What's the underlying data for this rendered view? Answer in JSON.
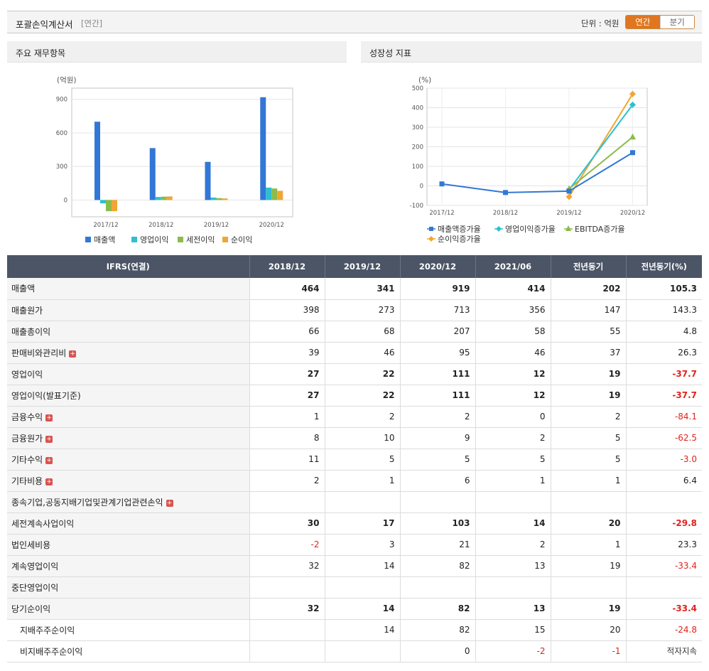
{
  "header": {
    "title": "포괄손익계산서",
    "subtitle": "[연간]",
    "unit_label": "단위 : 억원",
    "toggle_annual": "연간",
    "toggle_quarter": "분기"
  },
  "panels": {
    "left_title": "주요 재무항목",
    "right_title": "성장성 지표"
  },
  "colors": {
    "revenue": "#3277d6",
    "op_income": "#2fbfcf",
    "pretax": "#8bbb4a",
    "net": "#f0a635",
    "table_header": "#4b5566",
    "negative": "#e0231d",
    "accent": "#e0761f"
  },
  "chart_data": [
    {
      "type": "bar",
      "ylabel": "(억원)",
      "categories": [
        "2017/12",
        "2018/12",
        "2019/12",
        "2020/12"
      ],
      "ylim": [
        -150,
        1000
      ],
      "yticks": [
        0,
        300,
        600,
        900
      ],
      "series": [
        {
          "name": "매출액",
          "values": [
            700,
            464,
            341,
            919
          ]
        },
        {
          "name": "영업이익",
          "values": [
            -30,
            27,
            22,
            111
          ]
        },
        {
          "name": "세전이익",
          "values": [
            -100,
            30,
            17,
            103
          ]
        },
        {
          "name": "순이익",
          "values": [
            -100,
            32,
            14,
            82
          ]
        }
      ],
      "legend_position": "bottom",
      "grid": true
    },
    {
      "type": "line",
      "ylabel": "(%)",
      "categories": [
        "2017/12",
        "2018/12",
        "2019/12",
        "2020/12"
      ],
      "ylim": [
        -100,
        500
      ],
      "yticks": [
        -100,
        0,
        100,
        200,
        300,
        400,
        500
      ],
      "series": [
        {
          "name": "매출액증가율",
          "values": [
            10,
            -34,
            -27,
            170
          ]
        },
        {
          "name": "영업이익증가율",
          "values": [
            null,
            null,
            -20,
            415
          ]
        },
        {
          "name": "EBITDA증가율",
          "values": [
            null,
            null,
            -15,
            250
          ]
        },
        {
          "name": "순이익증가율",
          "values": [
            null,
            null,
            -56,
            470
          ]
        }
      ],
      "legend_position": "bottom",
      "grid": true
    }
  ],
  "table": {
    "headers": [
      "IFRS(연결)",
      "2018/12",
      "2019/12",
      "2020/12",
      "2021/06",
      "전년동기",
      "전년동기(%)"
    ],
    "rows": [
      {
        "label": "매출액",
        "values": [
          "464",
          "341",
          "919",
          "414",
          "202",
          "105.3"
        ],
        "bold": true,
        "expand": false
      },
      {
        "label": "매출원가",
        "values": [
          "398",
          "273",
          "713",
          "356",
          "147",
          "143.3"
        ],
        "bold": false,
        "expand": false
      },
      {
        "label": "매출총이익",
        "values": [
          "66",
          "68",
          "207",
          "58",
          "55",
          "4.8"
        ],
        "bold": false,
        "expand": false
      },
      {
        "label": "판매비와관리비",
        "values": [
          "39",
          "46",
          "95",
          "46",
          "37",
          "26.3"
        ],
        "bold": false,
        "expand": true
      },
      {
        "label": "영업이익",
        "values": [
          "27",
          "22",
          "111",
          "12",
          "19",
          "-37.7"
        ],
        "bold": true,
        "expand": false,
        "major": true
      },
      {
        "label": "영업이익(발표기준)",
        "values": [
          "27",
          "22",
          "111",
          "12",
          "19",
          "-37.7"
        ],
        "bold": true,
        "expand": false
      },
      {
        "label": "금융수익",
        "values": [
          "1",
          "2",
          "2",
          "0",
          "2",
          "-84.1"
        ],
        "bold": false,
        "expand": true
      },
      {
        "label": "금융원가",
        "values": [
          "8",
          "10",
          "9",
          "2",
          "5",
          "-62.5"
        ],
        "bold": false,
        "expand": true
      },
      {
        "label": "기타수익",
        "values": [
          "11",
          "5",
          "5",
          "5",
          "5",
          "-3.0"
        ],
        "bold": false,
        "expand": true
      },
      {
        "label": "기타비용",
        "values": [
          "2",
          "1",
          "6",
          "1",
          "1",
          "6.4"
        ],
        "bold": false,
        "expand": true
      },
      {
        "label": "종속기업,공동지배기업및관계기업관련손익",
        "values": [
          "",
          "",
          "",
          "",
          "",
          ""
        ],
        "bold": false,
        "expand": true
      },
      {
        "label": "세전계속사업이익",
        "values": [
          "30",
          "17",
          "103",
          "14",
          "20",
          "-29.8"
        ],
        "bold": true,
        "expand": false,
        "major": true
      },
      {
        "label": "법인세비용",
        "values": [
          "-2",
          "3",
          "21",
          "2",
          "1",
          "23.3"
        ],
        "bold": false,
        "expand": false
      },
      {
        "label": "계속영업이익",
        "values": [
          "32",
          "14",
          "82",
          "13",
          "19",
          "-33.4"
        ],
        "bold": false,
        "expand": false
      },
      {
        "label": "중단영업이익",
        "values": [
          "",
          "",
          "",
          "",
          "",
          ""
        ],
        "bold": false,
        "expand": false
      },
      {
        "label": "당기순이익",
        "values": [
          "32",
          "14",
          "82",
          "13",
          "19",
          "-33.4"
        ],
        "bold": true,
        "expand": false,
        "major": true
      },
      {
        "label": "지배주주순이익",
        "values": [
          "",
          "14",
          "82",
          "15",
          "20",
          "-24.8"
        ],
        "bold": false,
        "expand": false,
        "sub": true
      },
      {
        "label": "비지배주주순이익",
        "values": [
          "",
          "",
          "0",
          "-2",
          "-1",
          "적자지속"
        ],
        "bold": false,
        "expand": false,
        "sub": true
      }
    ]
  }
}
